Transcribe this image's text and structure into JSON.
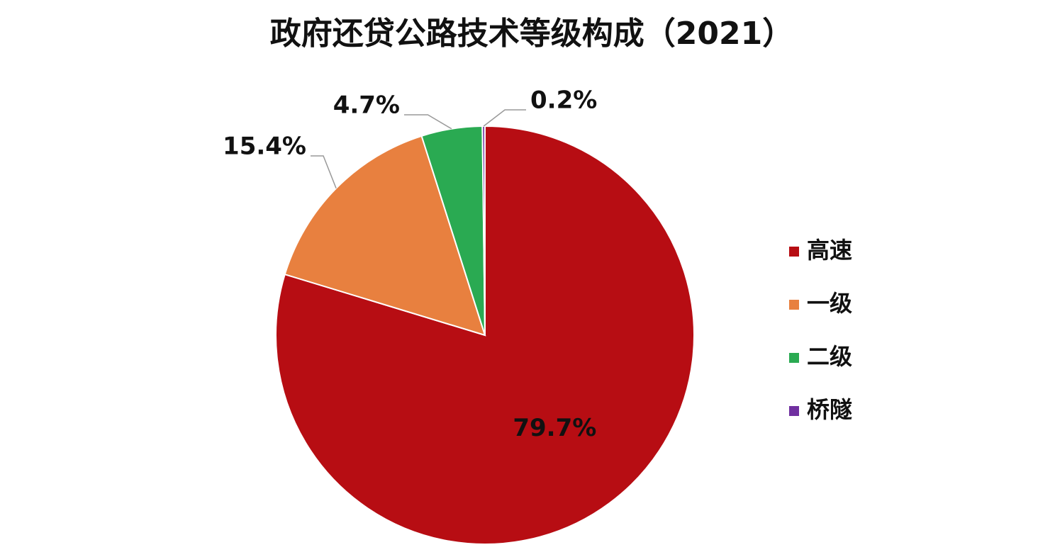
{
  "chart_data": {
    "type": "pie",
    "title": "政府还贷公路技术等级构成（2021）",
    "categories": [
      "高速",
      "一级",
      "二级",
      "桥隧"
    ],
    "values": [
      79.7,
      15.4,
      4.7,
      0.2
    ],
    "value_labels": [
      "79.7%",
      "15.4%",
      "4.7%",
      "0.2%"
    ],
    "colors": [
      "#b70d13",
      "#e8803f",
      "#2aaa52",
      "#7030a0"
    ],
    "legend": "right"
  }
}
